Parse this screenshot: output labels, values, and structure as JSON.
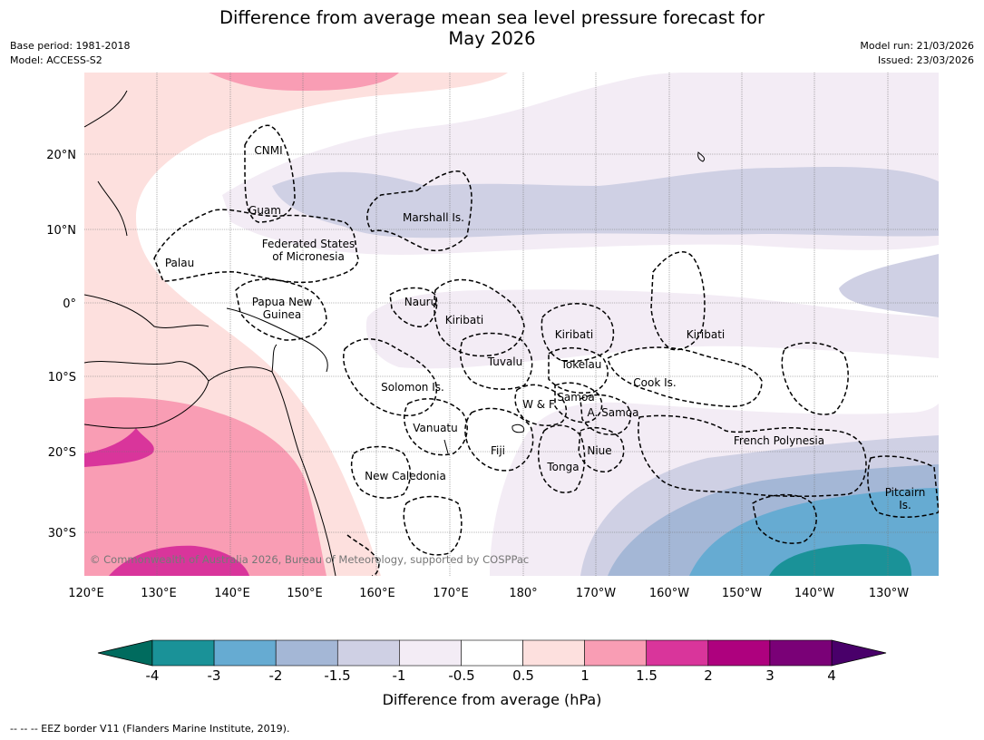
{
  "title_line1": "Difference from average mean sea level pressure forecast for",
  "title_line2": "May 2026",
  "base_period": "Base period: 1981-2018",
  "model": "Model: ACCESS-S2",
  "model_run": "Model run: 21/03/2026",
  "issued": "Issued: 23/03/2026",
  "copyright": "© Commonwealth of Australia 2026, Bureau of Meteorology, supported by COSPPac",
  "lon_ticks": [
    "120°E",
    "130°E",
    "140°E",
    "150°E",
    "160°E",
    "170°E",
    "180°",
    "170°W",
    "160°W",
    "150°W",
    "140°W",
    "130°W"
  ],
  "lat_ticks": [
    "20°N",
    "10°N",
    "0°",
    "10°S",
    "20°S",
    "30°S"
  ],
  "regions": {
    "cnmi": "CNMI",
    "guam": "Guam",
    "marshall": "Marshall Is.",
    "fsm1": "Federated States",
    "fsm2": "of Micronesia",
    "palau": "Palau",
    "png1": "Papua New",
    "png2": "Guinea",
    "nauru": "Nauru",
    "kiribati_w": "Kiribati",
    "kiribati_c": "Kiribati",
    "kiribati_e": "Kiribati",
    "tuvalu": "Tuvalu",
    "tokelau": "Tokelau",
    "cook": "Cook Is.",
    "solomon": "Solomon Is.",
    "wf": "W & F",
    "samoa": "Samoa",
    "asamoa": "A. Samoa",
    "vanuatu": "Vanuatu",
    "fiji": "Fiji",
    "niue": "Niue",
    "tonga": "Tonga",
    "frpoly": "French Polynesia",
    "newcal": "New Caledonia",
    "pitcairn1": "Pitcairn",
    "pitcairn2": "Is."
  },
  "colorbar": {
    "title": "Difference from average (hPa)",
    "labels": [
      "-4",
      "-3",
      "-2",
      "-1.5",
      "-1",
      "-0.5",
      "0.5",
      "1",
      "1.5",
      "2",
      "3",
      "4"
    ],
    "colors": [
      "#1a9298",
      "#66abd2",
      "#a4b7d6",
      "#cfd0e4",
      "#f3ecf5",
      "#ffffff",
      "#fde0de",
      "#f99db4",
      "#d9359b",
      "#ae017e",
      "#7a0177"
    ],
    "low_extend": "#006b5e",
    "high_extend": "#49006a"
  },
  "footer": "--  --  -- EEZ border V11 (Flanders Marine Institute, 2019)."
}
